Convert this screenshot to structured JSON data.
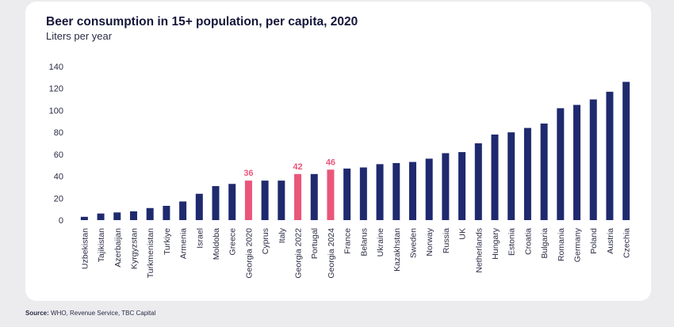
{
  "title": "Beer consumption in 15+ population, per capita, 2020",
  "subtitle": "Liters per year",
  "source_label": "Source:",
  "source_text": "WHO, Revenue Service, TBC Capital",
  "colors": {
    "bar": "#1f2a6e",
    "highlight": "#e9567a",
    "axis_text": "#2a2c45"
  },
  "chart_data": {
    "type": "bar",
    "title": "Beer consumption in 15+ population, per capita, 2020",
    "ylabel": "Liters per year",
    "xlabel": "",
    "ylim": [
      0,
      140
    ],
    "yticks": [
      0,
      20,
      40,
      60,
      80,
      100,
      120,
      140
    ],
    "grid": false,
    "categories": [
      "Uzbekistan",
      "Tajikistan",
      "Azerbaijan",
      "Kyrgyzstan",
      "Turkmenistan",
      "Turkiye",
      "Armenia",
      "Israel",
      "Moldoba",
      "Greece",
      "Georgia 2020",
      "Cyprus",
      "Italy",
      "Georgia 2022",
      "Portugal",
      "Georgia 2024",
      "France",
      "Belarus",
      "Ukraine",
      "Kazakhstan",
      "Sweden",
      "Norway",
      "Russia",
      "UK",
      "Netherlands",
      "Hungary",
      "Estonia",
      "Croatia",
      "Bulgaria",
      "Romania",
      "Germany",
      "Poland",
      "Austria",
      "Czechia"
    ],
    "values": [
      3,
      6,
      7,
      8,
      11,
      13,
      17,
      24,
      31,
      33,
      36,
      36,
      36,
      42,
      42,
      46,
      47,
      48,
      51,
      52,
      53,
      56,
      61,
      62,
      70,
      78,
      80,
      84,
      88,
      102,
      105,
      110,
      117,
      126
    ],
    "highlighted": [
      "Georgia 2020",
      "Georgia 2022",
      "Georgia 2024"
    ],
    "data_labels": [
      {
        "category": "Georgia 2020",
        "text": "36"
      },
      {
        "category": "Georgia 2022",
        "text": "42"
      },
      {
        "category": "Georgia 2024",
        "text": "46"
      }
    ]
  }
}
